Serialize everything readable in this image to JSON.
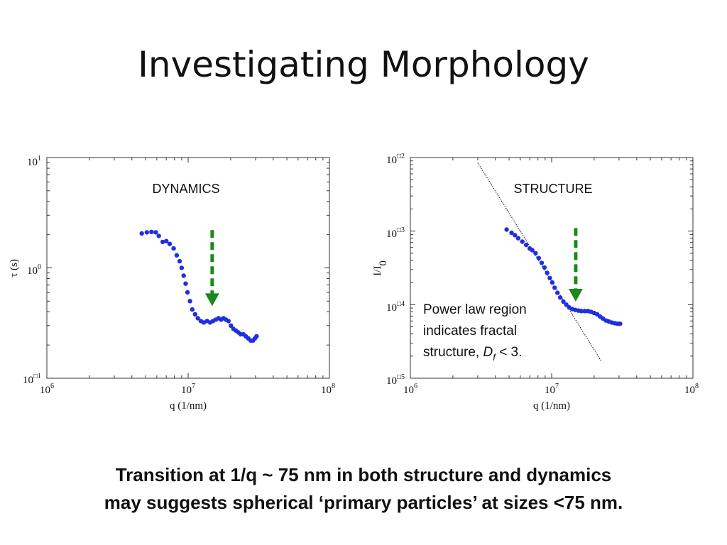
{
  "slide": {
    "title": "Investigating Morphology",
    "caption_line1": "Transition at 1/q ~ 75 nm in both structure and dynamics",
    "caption_line2": "may suggests spherical ‘primary particles’ at sizes <75 nm."
  },
  "colors": {
    "points": "#1f2fe0",
    "arrow": "#1a8a1a",
    "fit_line": "#111111"
  },
  "chart_data": [
    {
      "type": "scatter",
      "panel_label": "DYNAMICS",
      "xlabel": "q (1/nm)",
      "ylabel": "τ (s)",
      "xscale": "log",
      "yscale": "log",
      "xlim": [
        1000000,
        100000000
      ],
      "ylim": [
        0.1,
        10
      ],
      "x_ticks": [
        {
          "base": "10",
          "exp": "6",
          "value": 1000000
        },
        {
          "base": "10",
          "exp": "7",
          "value": 10000000
        },
        {
          "base": "10",
          "exp": "8",
          "value": 100000000
        }
      ],
      "y_ticks": [
        {
          "base": "10",
          "exp": "1",
          "value": 10
        },
        {
          "base": "10",
          "exp": "0",
          "value": 1
        },
        {
          "base": "10",
          "exp": "□1",
          "value": 0.1
        }
      ],
      "arrow": {
        "x": 14800000,
        "y_from": 2.2,
        "y_to": 0.45
      },
      "series": [
        {
          "points": [
            [
              4700000,
              2.05
            ],
            [
              5100000,
              2.1
            ],
            [
              5500000,
              2.12
            ],
            [
              5900000,
              2.1
            ],
            [
              6200000,
              1.95
            ],
            [
              6600000,
              1.72
            ],
            [
              7000000,
              1.75
            ],
            [
              7400000,
              1.65
            ],
            [
              7900000,
              1.5
            ],
            [
              8300000,
              1.3
            ],
            [
              8700000,
              1.15
            ],
            [
              9000000,
              1.0
            ],
            [
              9300000,
              0.85
            ],
            [
              9600000,
              0.72
            ],
            [
              9900000,
              0.6
            ],
            [
              10300000,
              0.5
            ],
            [
              10700000,
              0.42
            ],
            [
              11200000,
              0.38
            ],
            [
              11700000,
              0.35
            ],
            [
              12300000,
              0.33
            ],
            [
              12900000,
              0.32
            ],
            [
              13600000,
              0.33
            ],
            [
              14300000,
              0.32
            ],
            [
              15000000,
              0.33
            ],
            [
              15700000,
              0.34
            ],
            [
              16400000,
              0.35
            ],
            [
              17100000,
              0.34
            ],
            [
              17800000,
              0.35
            ],
            [
              18500000,
              0.34
            ],
            [
              19300000,
              0.33
            ],
            [
              20100000,
              0.3
            ],
            [
              20900000,
              0.28
            ],
            [
              21800000,
              0.27
            ],
            [
              22700000,
              0.26
            ],
            [
              23600000,
              0.25
            ],
            [
              24600000,
              0.25
            ],
            [
              25600000,
              0.24
            ],
            [
              26600000,
              0.23
            ],
            [
              27700000,
              0.22
            ],
            [
              28800000,
              0.22
            ],
            [
              29700000,
              0.23
            ],
            [
              30500000,
              0.24
            ]
          ]
        }
      ]
    },
    {
      "type": "scatter",
      "panel_label": "STRUCTURE",
      "xlabel": "q (1/nm)",
      "ylabel": "I/I",
      "ylabel_sub": "0",
      "xscale": "log",
      "yscale": "log",
      "xlim": [
        1000000,
        100000000
      ],
      "ylim": [
        1e-05,
        0.01
      ],
      "x_ticks": [
        {
          "base": "10",
          "exp": "6",
          "value": 1000000
        },
        {
          "base": "10",
          "exp": "7",
          "value": 10000000
        },
        {
          "base": "10",
          "exp": "8",
          "value": 100000000
        }
      ],
      "y_ticks": [
        {
          "base": "10",
          "exp": "□2",
          "value": 0.01
        },
        {
          "base": "10",
          "exp": "□3",
          "value": 0.001
        },
        {
          "base": "10",
          "exp": "□4",
          "value": 0.0001
        },
        {
          "base": "10",
          "exp": "□5",
          "value": 1e-05
        }
      ],
      "arrow": {
        "x": 14800000,
        "y_from": 0.0011,
        "y_to": 0.00011
      },
      "fit_line": {
        "x1": 3000000,
        "y1": 0.0085,
        "x2": 22500000,
        "y2": 1.7e-05
      },
      "annotation": {
        "line1": "Power law region",
        "line2": "indicates fractal",
        "line3_prefix": "structure, ",
        "symbol": "D",
        "subscript": "f",
        "line3_suffix": " < 3."
      },
      "series": [
        {
          "points": [
            [
              4800000,
              0.00105
            ],
            [
              5200000,
              0.00095
            ],
            [
              5500000,
              0.00088
            ],
            [
              5800000,
              0.0008
            ],
            [
              6200000,
              0.00072
            ],
            [
              6600000,
              0.00065
            ],
            [
              7000000,
              0.00058
            ],
            [
              7300000,
              0.00055
            ],
            [
              7700000,
              0.0005
            ],
            [
              8100000,
              0.00043
            ],
            [
              8500000,
              0.00037
            ],
            [
              8900000,
              0.00032
            ],
            [
              9300000,
              0.00027
            ],
            [
              9700000,
              0.00023
            ],
            [
              10100000,
              0.0002
            ],
            [
              10500000,
              0.00017
            ],
            [
              11000000,
              0.000145
            ],
            [
              11500000,
              0.000125
            ],
            [
              12100000,
              0.00011
            ],
            [
              12700000,
              0.0001
            ],
            [
              13300000,
              9.2e-05
            ],
            [
              14000000,
              8.7e-05
            ],
            [
              14700000,
              8.5e-05
            ],
            [
              15500000,
              8.3e-05
            ],
            [
              16300000,
              8.2e-05
            ],
            [
              17200000,
              8.2e-05
            ],
            [
              18100000,
              8.2e-05
            ],
            [
              19000000,
              8e-05
            ],
            [
              20000000,
              7.7e-05
            ],
            [
              21000000,
              7.4e-05
            ],
            [
              22000000,
              6.9e-05
            ],
            [
              23000000,
              6.5e-05
            ],
            [
              24200000,
              6.1e-05
            ],
            [
              25400000,
              5.9e-05
            ],
            [
              26700000,
              5.7e-05
            ],
            [
              28000000,
              5.6e-05
            ],
            [
              29300000,
              5.5e-05
            ],
            [
              30500000,
              5.5e-05
            ]
          ]
        }
      ]
    }
  ]
}
